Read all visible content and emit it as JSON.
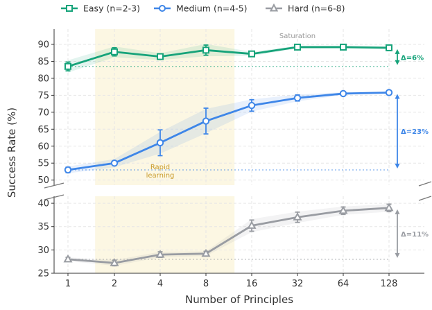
{
  "chart_data": {
    "type": "line",
    "xlabel": "Number of Principles",
    "ylabel": "Success Rate (%)",
    "x": [
      1,
      2,
      4,
      8,
      16,
      32,
      64,
      128
    ],
    "x_tick_labels": [
      "1",
      "2",
      "4",
      "8",
      "16",
      "32",
      "64",
      "128"
    ],
    "x_scale": "log2",
    "y_axis_break": true,
    "upper_panel": {
      "ylim": [
        48.5,
        94.5
      ],
      "yticks": [
        50,
        55,
        60,
        65,
        70,
        75,
        80,
        85,
        90
      ]
    },
    "lower_panel": {
      "ylim": [
        25,
        41.5
      ],
      "yticks": [
        25,
        30,
        35,
        40
      ]
    },
    "grid": true,
    "legend_position": "top",
    "series": [
      {
        "name": "Easy (n=2-3)",
        "color": "#16a37a",
        "marker": "square",
        "panel": "upper",
        "values": [
          83.5,
          87.8,
          86.4,
          88.3,
          87.2,
          89.2,
          89.2,
          89.0
        ],
        "error": [
          1.3,
          1.2,
          0.8,
          1.5,
          0.7,
          0.4,
          0.4,
          0.5
        ],
        "band": [
          1.8,
          1.6,
          1.0,
          1.8,
          0.6,
          0.4,
          0.4,
          0.4
        ],
        "baseline": 83.5,
        "delta_label": "Δ=6%"
      },
      {
        "name": "Medium (n=4-5)",
        "color": "#3e86e8",
        "marker": "circle",
        "panel": "upper",
        "values": [
          53.0,
          55.0,
          61.0,
          67.4,
          72.0,
          74.2,
          75.5,
          75.8
        ],
        "error": [
          0.8,
          0.6,
          3.8,
          3.8,
          1.7,
          0.9,
          0.3,
          0.3
        ],
        "band": [
          1.0,
          1.2,
          3.2,
          3.6,
          1.8,
          1.0,
          0.4,
          0.3
        ],
        "baseline": 53.0,
        "delta_label": "Δ=23%"
      },
      {
        "name": "Hard (n=6-8)",
        "color": "#999ca2",
        "marker": "triangle",
        "panel": "lower",
        "values": [
          28.0,
          27.2,
          29.0,
          29.2,
          35.2,
          37.0,
          38.4,
          39.0
        ],
        "error": [
          0.4,
          0.6,
          0.6,
          0.5,
          1.2,
          1.1,
          0.8,
          0.8
        ],
        "band": [
          0.4,
          0.6,
          0.6,
          0.5,
          1.4,
          1.2,
          0.9,
          0.8
        ],
        "baseline": 28.0,
        "delta_label": "Δ=11%"
      }
    ],
    "shaded_region_x": [
      1.5,
      12
    ],
    "shaded_region_color": "#fcf7e3",
    "annotations": {
      "rapid_learning": "Rapid\nlearning",
      "saturation": "Saturation"
    }
  }
}
